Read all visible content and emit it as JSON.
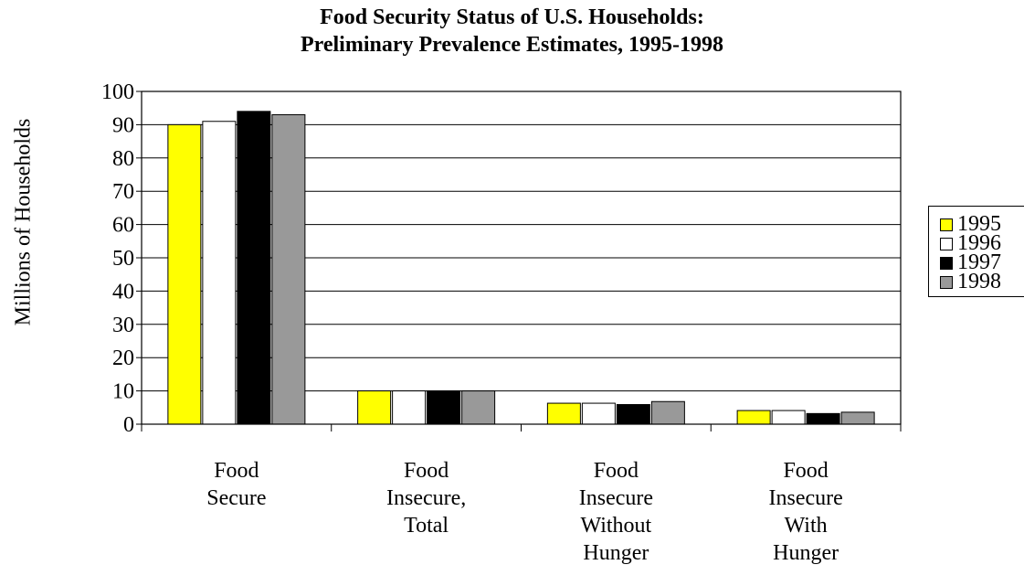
{
  "chart_data": {
    "type": "bar",
    "title": "Food Security Status of U.S. Households:",
    "subtitle": "Preliminary Prevalence Estimates, 1995-1998",
    "xlabel": "",
    "ylabel": "Millions of Households",
    "ylim": [
      0,
      100
    ],
    "yticks": [
      "0",
      "10",
      "20",
      "30",
      "40",
      "50",
      "60",
      "70",
      "80",
      "90",
      "100"
    ],
    "grid": true,
    "legend_position": "right",
    "categories": [
      [
        "Food",
        "Secure"
      ],
      [
        "Food",
        "Insecure,",
        "Total"
      ],
      [
        "Food",
        "Insecure",
        "Without",
        "Hunger"
      ],
      [
        "Food",
        "Insecure",
        "With",
        "Hunger"
      ]
    ],
    "series": [
      {
        "name": "1995",
        "color": "#ffff00",
        "values": [
          90,
          10,
          6.3,
          4.1
        ]
      },
      {
        "name": "1996",
        "color": "#ffffff",
        "values": [
          91,
          10,
          6.3,
          4.1
        ]
      },
      {
        "name": "1997",
        "color": "#000000",
        "values": [
          94,
          10,
          5.9,
          3.2
        ]
      },
      {
        "name": "1998",
        "color": "#999999",
        "values": [
          93,
          10,
          6.8,
          3.6
        ]
      }
    ]
  }
}
